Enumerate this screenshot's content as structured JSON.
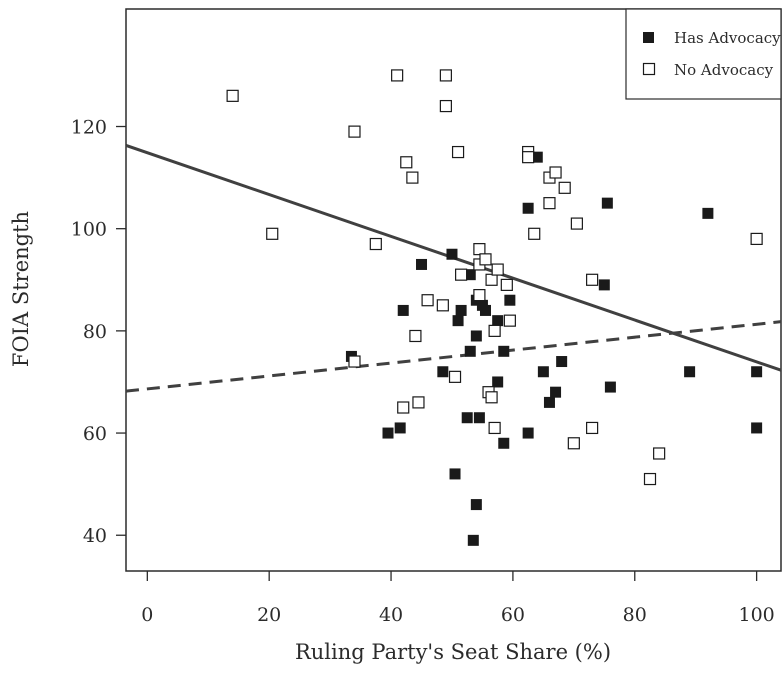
{
  "chart_data": {
    "type": "scatter",
    "xlabel": "Ruling Party's Seat Share (%)",
    "ylabel": "FOIA Strength",
    "xlim": [
      -3.5,
      104
    ],
    "ylim": [
      33,
      143
    ],
    "xticks": [
      0,
      20,
      40,
      60,
      80,
      100
    ],
    "yticks": [
      40,
      60,
      80,
      100,
      120
    ],
    "legend_position": "top-right",
    "colors": {
      "has_advocacy": "#1a1a1a",
      "no_advocacy": "#ffffff",
      "line": "#404040"
    },
    "series": [
      {
        "name": "Has Advocacy",
        "marker": "filled-square",
        "points": [
          [
            33.5,
            75
          ],
          [
            39.5,
            60
          ],
          [
            41.5,
            61
          ],
          [
            42,
            84
          ],
          [
            45,
            93
          ],
          [
            48.5,
            72
          ],
          [
            50,
            95
          ],
          [
            50.5,
            52
          ],
          [
            51,
            82
          ],
          [
            51.5,
            84
          ],
          [
            52.5,
            63
          ],
          [
            53,
            91
          ],
          [
            53,
            76
          ],
          [
            53.5,
            39
          ],
          [
            54,
            86
          ],
          [
            54,
            79
          ],
          [
            54,
            46
          ],
          [
            54.5,
            63
          ],
          [
            55,
            85
          ],
          [
            55.5,
            84
          ],
          [
            57.5,
            82
          ],
          [
            57.5,
            70
          ],
          [
            58.5,
            58
          ],
          [
            58.5,
            76
          ],
          [
            59.5,
            86
          ],
          [
            62.5,
            104
          ],
          [
            62.5,
            60
          ],
          [
            64,
            114
          ],
          [
            65,
            72
          ],
          [
            66,
            66
          ],
          [
            67,
            68
          ],
          [
            68,
            74
          ],
          [
            75,
            89
          ],
          [
            75.5,
            105
          ],
          [
            76,
            69
          ],
          [
            89,
            72
          ],
          [
            92,
            103
          ],
          [
            100,
            72
          ],
          [
            100,
            61
          ]
        ]
      },
      {
        "name": "No Advocacy",
        "marker": "open-square",
        "points": [
          [
            14,
            126
          ],
          [
            20.5,
            99
          ],
          [
            34,
            119
          ],
          [
            34,
            74
          ],
          [
            37.5,
            97
          ],
          [
            41,
            130
          ],
          [
            42,
            65
          ],
          [
            42.5,
            113
          ],
          [
            43.5,
            110
          ],
          [
            44,
            79
          ],
          [
            44.5,
            66
          ],
          [
            46,
            86
          ],
          [
            48.5,
            85
          ],
          [
            49,
            130
          ],
          [
            49,
            124
          ],
          [
            50.5,
            71
          ],
          [
            51,
            115
          ],
          [
            51.5,
            91
          ],
          [
            54.5,
            96
          ],
          [
            54.5,
            93
          ],
          [
            54.5,
            87
          ],
          [
            55.5,
            94
          ],
          [
            56,
            68
          ],
          [
            56.5,
            67
          ],
          [
            56.5,
            90
          ],
          [
            57,
            80
          ],
          [
            57,
            61
          ],
          [
            57.5,
            92
          ],
          [
            59,
            89
          ],
          [
            59.5,
            82
          ],
          [
            62.5,
            115
          ],
          [
            62.5,
            114
          ],
          [
            63.5,
            99
          ],
          [
            66,
            110
          ],
          [
            66,
            105
          ],
          [
            67,
            111
          ],
          [
            68.5,
            108
          ],
          [
            70,
            58
          ],
          [
            70.5,
            101
          ],
          [
            73,
            90
          ],
          [
            73,
            61
          ],
          [
            82.5,
            51
          ],
          [
            84,
            56
          ],
          [
            100,
            98
          ]
        ]
      }
    ],
    "trend_lines": [
      {
        "for": "No Advocacy",
        "style": "solid",
        "x": [
          -3.5,
          104
        ],
        "y": [
          116.3,
          72.3
        ]
      },
      {
        "for": "Has Advocacy",
        "style": "dashed",
        "x": [
          -3.5,
          104
        ],
        "y": [
          68.2,
          81.8
        ]
      }
    ]
  }
}
